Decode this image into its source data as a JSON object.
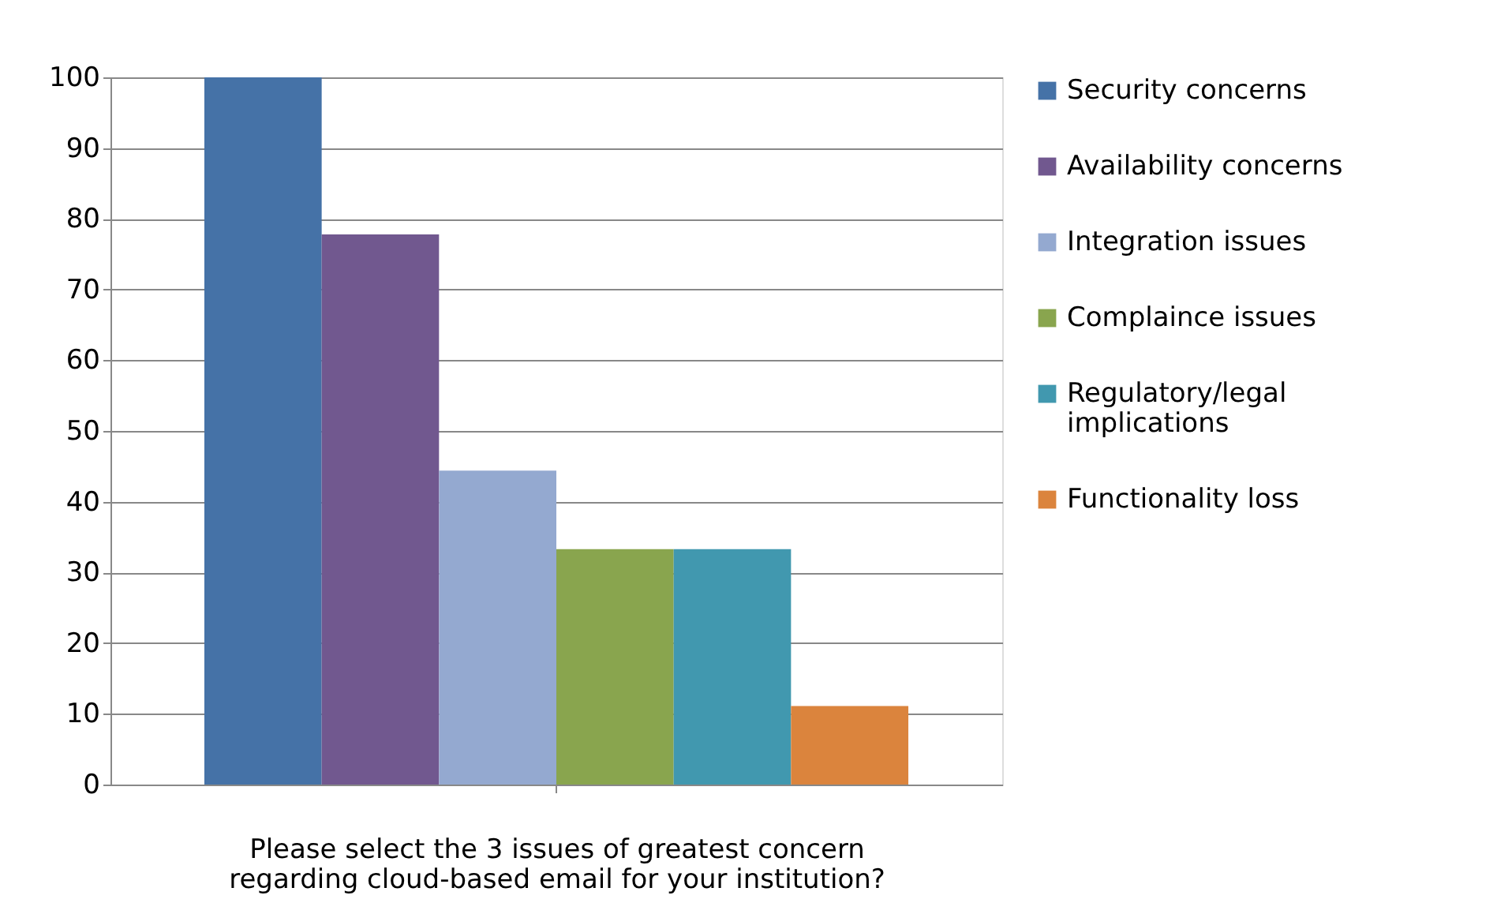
{
  "chart_data": {
    "type": "bar",
    "xlabel": "Please select the 3 issues of greatest concern regarding cloud-based email for your institution?",
    "categories": [
      null
    ],
    "series": [
      {
        "name": "Security concerns",
        "color": "#4572a7",
        "values": [
          100
        ]
      },
      {
        "name": "Availability concerns",
        "color": "#71588f",
        "values": [
          77.8
        ]
      },
      {
        "name": "Integration issues",
        "color": "#94a9d0",
        "values": [
          44.4
        ]
      },
      {
        "name": "Complaince issues",
        "color": "#89a54e",
        "values": [
          33.3
        ]
      },
      {
        "name": "Regulatory/legal implications",
        "color": "#4198af",
        "values": [
          33.3
        ]
      },
      {
        "name": "Functionality loss",
        "color": "#db843d",
        "values": [
          11.1
        ]
      }
    ],
    "ylim": [
      0,
      100
    ],
    "yticks": [
      0,
      10,
      20,
      30,
      40,
      50,
      60,
      70,
      80,
      90,
      100
    ],
    "grid": "y",
    "legend": "right"
  }
}
